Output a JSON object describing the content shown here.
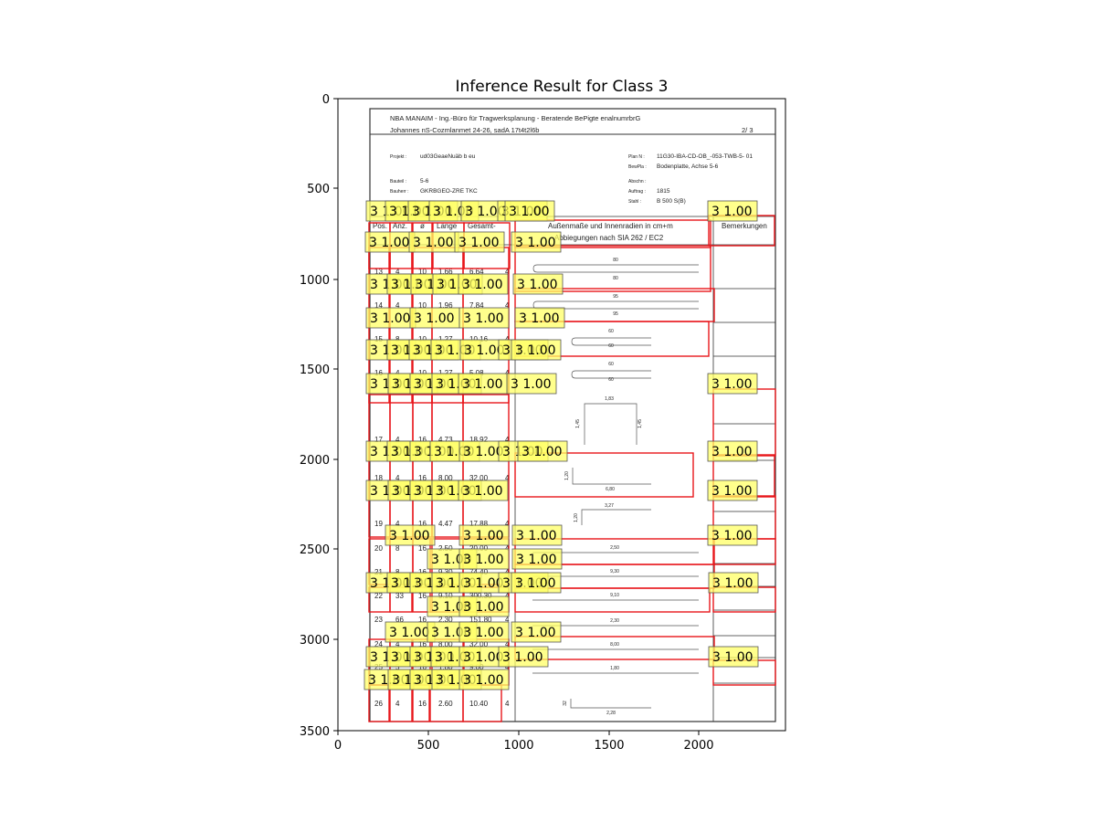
{
  "figure": {
    "title": "Inference Result for Class 3",
    "x_ticks": [
      "0",
      "500",
      "1000",
      "1500",
      "2000"
    ],
    "y_ticks": [
      "0",
      "500",
      "1000",
      "1500",
      "2000",
      "2500",
      "3000",
      "3500"
    ]
  },
  "document": {
    "company": "NBA MANAIM   - Ing.-Büro für Tragwerksplanung - Beratende BePigte enalnumrbrG",
    "address": "Johannes nS-Cozmlanmet   24-26, sadA 17t4t2l6b",
    "page": "2/  3",
    "fields_left": [
      {
        "label": "Projekt :",
        "value": "ud03GeaeNuäb b eu"
      },
      {
        "label": "Bauteil :",
        "value": "5-6"
      },
      {
        "label": "Bauherr :",
        "value": "GKRBGEO-ZRE TKC"
      }
    ],
    "fields_right": [
      {
        "label": "Plan N :",
        "value": "11G30-IBA-CD-OB_-053-TWB-5- 01"
      },
      {
        "label": "BewPla :",
        "value": "Bodenplatte, Achse 5-6"
      },
      {
        "label": "Abschn :",
        "value": ""
      },
      {
        "label": "Auftrag :",
        "value": "1815"
      },
      {
        "label": "Stahl :",
        "value": "B 500 S(B)"
      }
    ],
    "headers": {
      "pos": "Pos.",
      "anz": "Anz.",
      "dia": "ø",
      "laenge": "Länge",
      "gesamt": "Gesamt-",
      "desc1": "Außenmaße und Innenradien in cm+m",
      "desc2": "Abbiegungen nach SIA 262 / EC2",
      "remarks": "Bemerkungen"
    },
    "rows": [
      {
        "pos": "13",
        "anz": "4",
        "dia": "10",
        "len": "1.66",
        "tot": "6.64",
        "z": "4",
        "dims": [
          "80",
          "80"
        ]
      },
      {
        "pos": "14",
        "anz": "4",
        "dia": "10",
        "len": "1.96",
        "tot": "7.84",
        "z": "4",
        "dims": [
          "95",
          "95"
        ]
      },
      {
        "pos": "15",
        "anz": "8",
        "dia": "10",
        "len": "1.27",
        "tot": "10.16",
        "z": "4",
        "dims": [
          "60",
          "60"
        ]
      },
      {
        "pos": "16",
        "anz": "4",
        "dia": "10",
        "len": "1.27",
        "tot": "5.08",
        "z": "4",
        "dims": [
          "60",
          "60"
        ]
      },
      {
        "pos": "17",
        "anz": "4",
        "dia": "16",
        "len": "4.73",
        "tot": "18.92",
        "z": "4",
        "dims": [
          "1,83",
          "1,45",
          "1,45"
        ]
      },
      {
        "pos": "18",
        "anz": "4",
        "dia": "16",
        "len": "8.00",
        "tot": "32.00",
        "z": "4",
        "dims": [
          "6,80",
          "1,20"
        ]
      },
      {
        "pos": "19",
        "anz": "4",
        "dia": "16",
        "len": "4.47",
        "tot": "17.88",
        "z": "4",
        "dims": [
          "3,27",
          "1,20"
        ]
      },
      {
        "pos": "20",
        "anz": "8",
        "dia": "16",
        "len": "2.50",
        "tot": "20.00",
        "z": "4",
        "dims": [
          "2,50"
        ]
      },
      {
        "pos": "21",
        "anz": "8",
        "dia": "16",
        "len": "9.30",
        "tot": "74.40",
        "z": "4",
        "dims": [
          "9,30"
        ]
      },
      {
        "pos": "22",
        "anz": "33",
        "dia": "16",
        "len": "9.10",
        "tot": "300.30",
        "z": "4",
        "dims": [
          "9,10"
        ]
      },
      {
        "pos": "23",
        "anz": "66",
        "dia": "16",
        "len": "2.30",
        "tot": "151.80",
        "z": "4",
        "dims": [
          "2,30"
        ]
      },
      {
        "pos": "24",
        "anz": "4",
        "dia": "16",
        "len": "8.00",
        "tot": "32.00",
        "z": "4",
        "dims": [
          "8,00"
        ]
      },
      {
        "pos": "25",
        "anz": "5",
        "dia": "16",
        "len": "1.80",
        "tot": "9.00",
        "z": "4",
        "dims": [
          "1,80"
        ]
      },
      {
        "pos": "26",
        "anz": "4",
        "dia": "16",
        "len": "2.60",
        "tot": "10.40",
        "z": "4",
        "dims": [
          "2,28",
          "32"
        ]
      }
    ]
  },
  "detection_label": "3 1.00",
  "colors": {
    "box": "#e8161b",
    "label_fill": "#ffff66",
    "label_edge": "#555555"
  }
}
